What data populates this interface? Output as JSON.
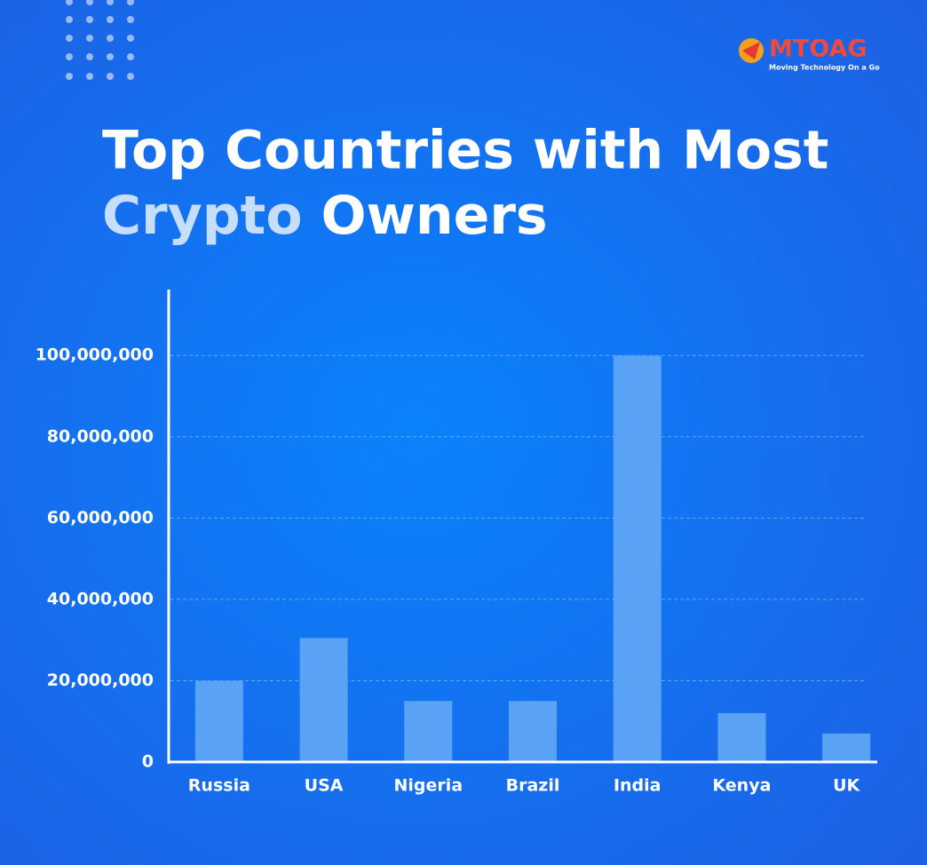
{
  "logo": {
    "name": "MTOAG",
    "tagline": "Moving Technology On a Go"
  },
  "chart_data": {
    "type": "bar",
    "title": [
      "Top Countries with Most",
      "Crypto",
      "Owners"
    ],
    "categories": [
      "Russia",
      "USA",
      "Nigeria",
      "Brazil",
      "India",
      "Kenya",
      "UK"
    ],
    "values": [
      20000000,
      30500000,
      15000000,
      15000000,
      100000000,
      12000000,
      7000000
    ],
    "color": "#5aa2f6",
    "ylim": [
      0,
      116000000
    ],
    "yticks": [
      0,
      {
        "value": 20000000,
        "label": "20,000,000"
      },
      {
        "value": 40000000,
        "label": "40,000,000"
      },
      {
        "value": 60000000,
        "label": "60,000,000"
      },
      {
        "value": 80000000,
        "label": "80,000,000"
      },
      {
        "value": 100000000,
        "label": "100,000,000"
      }
    ],
    "grid": true
  }
}
